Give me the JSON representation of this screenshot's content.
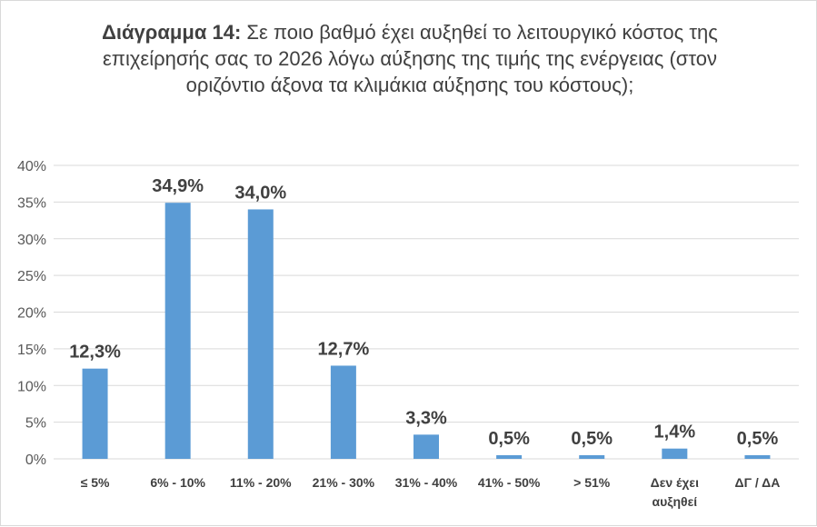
{
  "chart_data": {
    "type": "bar",
    "title_bold": "Διάγραμμα 14:",
    "title_rest": "Σε ποιο βαθμό έχει αυξηθεί το λειτουργικό κόστος της επιχείρησής σας το 2026 λόγω αύξησης της τιμής της ενέργειας (στον οριζόντιο άξονα τα κλιμάκια αύξησης του κόστους);",
    "categories": [
      "≤ 5%",
      "6% - 10%",
      "11% - 20%",
      "21% - 30%",
      "31% - 40%",
      "41% - 50%",
      "> 51%",
      "Δεν έχει αυξηθεί",
      "ΔΓ / ΔΑ"
    ],
    "category_lines": [
      [
        "≤ 5%"
      ],
      [
        "6% - 10%"
      ],
      [
        "11% - 20%"
      ],
      [
        "21% - 30%"
      ],
      [
        "31% - 40%"
      ],
      [
        "41% - 50%"
      ],
      [
        "> 51%"
      ],
      [
        "Δεν έχει",
        "αυξηθεί"
      ],
      [
        "ΔΓ / ΔΑ"
      ]
    ],
    "values": [
      12.3,
      34.9,
      34.0,
      12.7,
      3.3,
      0.5,
      0.5,
      1.4,
      0.5
    ],
    "data_labels": [
      "12,3%",
      "34,9%",
      "34,0%",
      "12,7%",
      "3,3%",
      "0,5%",
      "0,5%",
      "1,4%",
      "0,5%"
    ],
    "ylim": [
      0,
      40
    ],
    "yticks": [
      0,
      5,
      10,
      15,
      20,
      25,
      30,
      35,
      40
    ],
    "ytick_labels": [
      "0%",
      "5%",
      "10%",
      "15%",
      "20%",
      "25%",
      "30%",
      "35%",
      "40%"
    ],
    "grid": true,
    "legend": "none",
    "colors": {
      "bar": "#5b9bd5",
      "grid": "#d9d9d9",
      "text": "#404040"
    }
  }
}
